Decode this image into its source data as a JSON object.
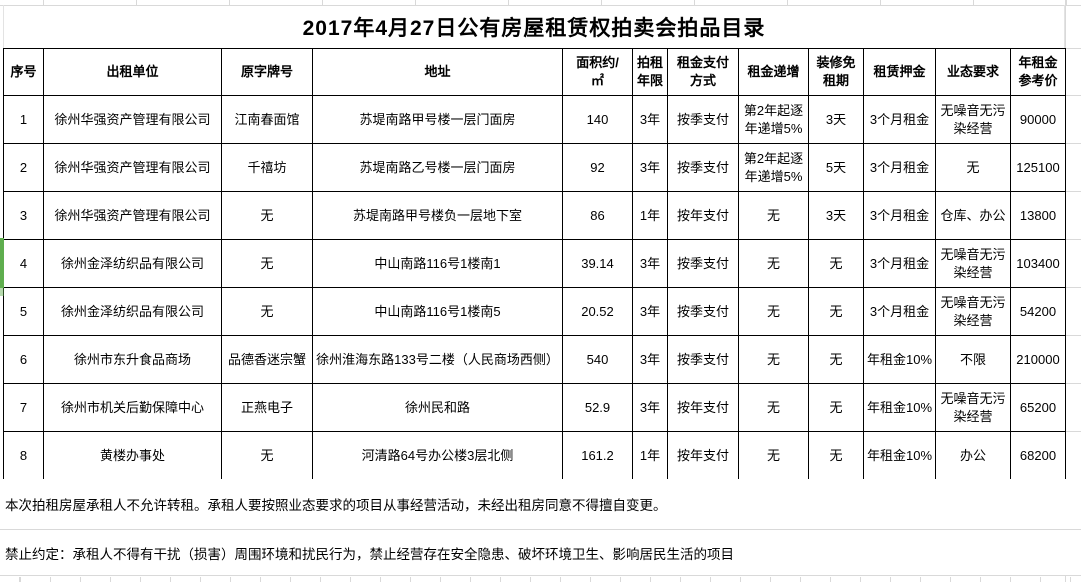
{
  "title": "2017年4月27日公有房屋租赁权拍卖会拍品目录",
  "table": {
    "headers": [
      "序号",
      "出租单位",
      "原字牌号",
      "地址",
      "面积约/\n㎡",
      "拍租\n年限",
      "租金支付\n方式",
      "租金递增",
      "装修免\n租期",
      "租赁押金",
      "业态要求",
      "年租金\n参考价"
    ],
    "rows": [
      {
        "cells": [
          "1",
          "徐州华强资产管理有限公司",
          "江南春面馆",
          "苏堤南路甲号楼一层门面房",
          "140",
          "3年",
          "按季支付",
          "第2年起逐\n年递增5%",
          "3天",
          "3个月租金",
          "无噪音无污\n染经营",
          "90000"
        ]
      },
      {
        "cells": [
          "2",
          "徐州华强资产管理有限公司",
          "千禧坊",
          "苏堤南路乙号楼一层门面房",
          "92",
          "3年",
          "按季支付",
          "第2年起逐\n年递增5%",
          "5天",
          "3个月租金",
          "无",
          "125100"
        ]
      },
      {
        "cells": [
          "3",
          "徐州华强资产管理有限公司",
          "无",
          "苏堤南路甲号楼负一层地下室",
          "86",
          "1年",
          "按年支付",
          "无",
          "3天",
          "3个月租金",
          "仓库、办公",
          "13800"
        ]
      },
      {
        "cells": [
          "4",
          "徐州金泽纺织品有限公司",
          "无",
          "中山南路116号1楼南1",
          "39.14",
          "3年",
          "按季支付",
          "无",
          "无",
          "3个月租金",
          "无噪音无污\n染经营",
          "103400"
        ]
      },
      {
        "cells": [
          "5",
          "徐州金泽纺织品有限公司",
          "无",
          "中山南路116号1楼南5",
          "20.52",
          "3年",
          "按季支付",
          "无",
          "无",
          "3个月租金",
          "无噪音无污\n染经营",
          "54200"
        ]
      },
      {
        "cells": [
          "6",
          "徐州市东升食品商场",
          "品德香迷宗蟹",
          "徐州淮海东路133号二楼（人民商场西侧）",
          "540",
          "3年",
          "按季支付",
          "无",
          "无",
          "年租金10%",
          "不限",
          "210000"
        ]
      },
      {
        "cells": [
          "7",
          "徐州市机关后勤保障中心",
          "正燕电子",
          "徐州民和路",
          "52.9",
          "3年",
          "按年支付",
          "无",
          "无",
          "年租金10%",
          "无噪音无污\n染经营",
          "65200"
        ]
      },
      {
        "cells": [
          "8",
          "黄楼办事处",
          "无",
          "河清路64号办公楼3层北侧",
          "161.2",
          "1年",
          "按年支付",
          "无",
          "无",
          "年租金10%",
          "办公",
          "68200"
        ]
      }
    ]
  },
  "notes": [
    "本次拍租房屋承租人不允许转租。承租人要按照业态要求的项目从事经营活动，未经出租房同意不得擅自变更。",
    "禁止约定：承租人不得有干扰（损害）周围环境和扰民行为，禁止经营存在安全隐患、破坏环境卫生、影响居民生活的项目"
  ],
  "selection_marker": {
    "row": "4",
    "color": "#5fae4e"
  },
  "colors": {
    "table_border": "#000000",
    "gridline": "#d9d9d9",
    "text": "#000000",
    "background": "#ffffff"
  }
}
